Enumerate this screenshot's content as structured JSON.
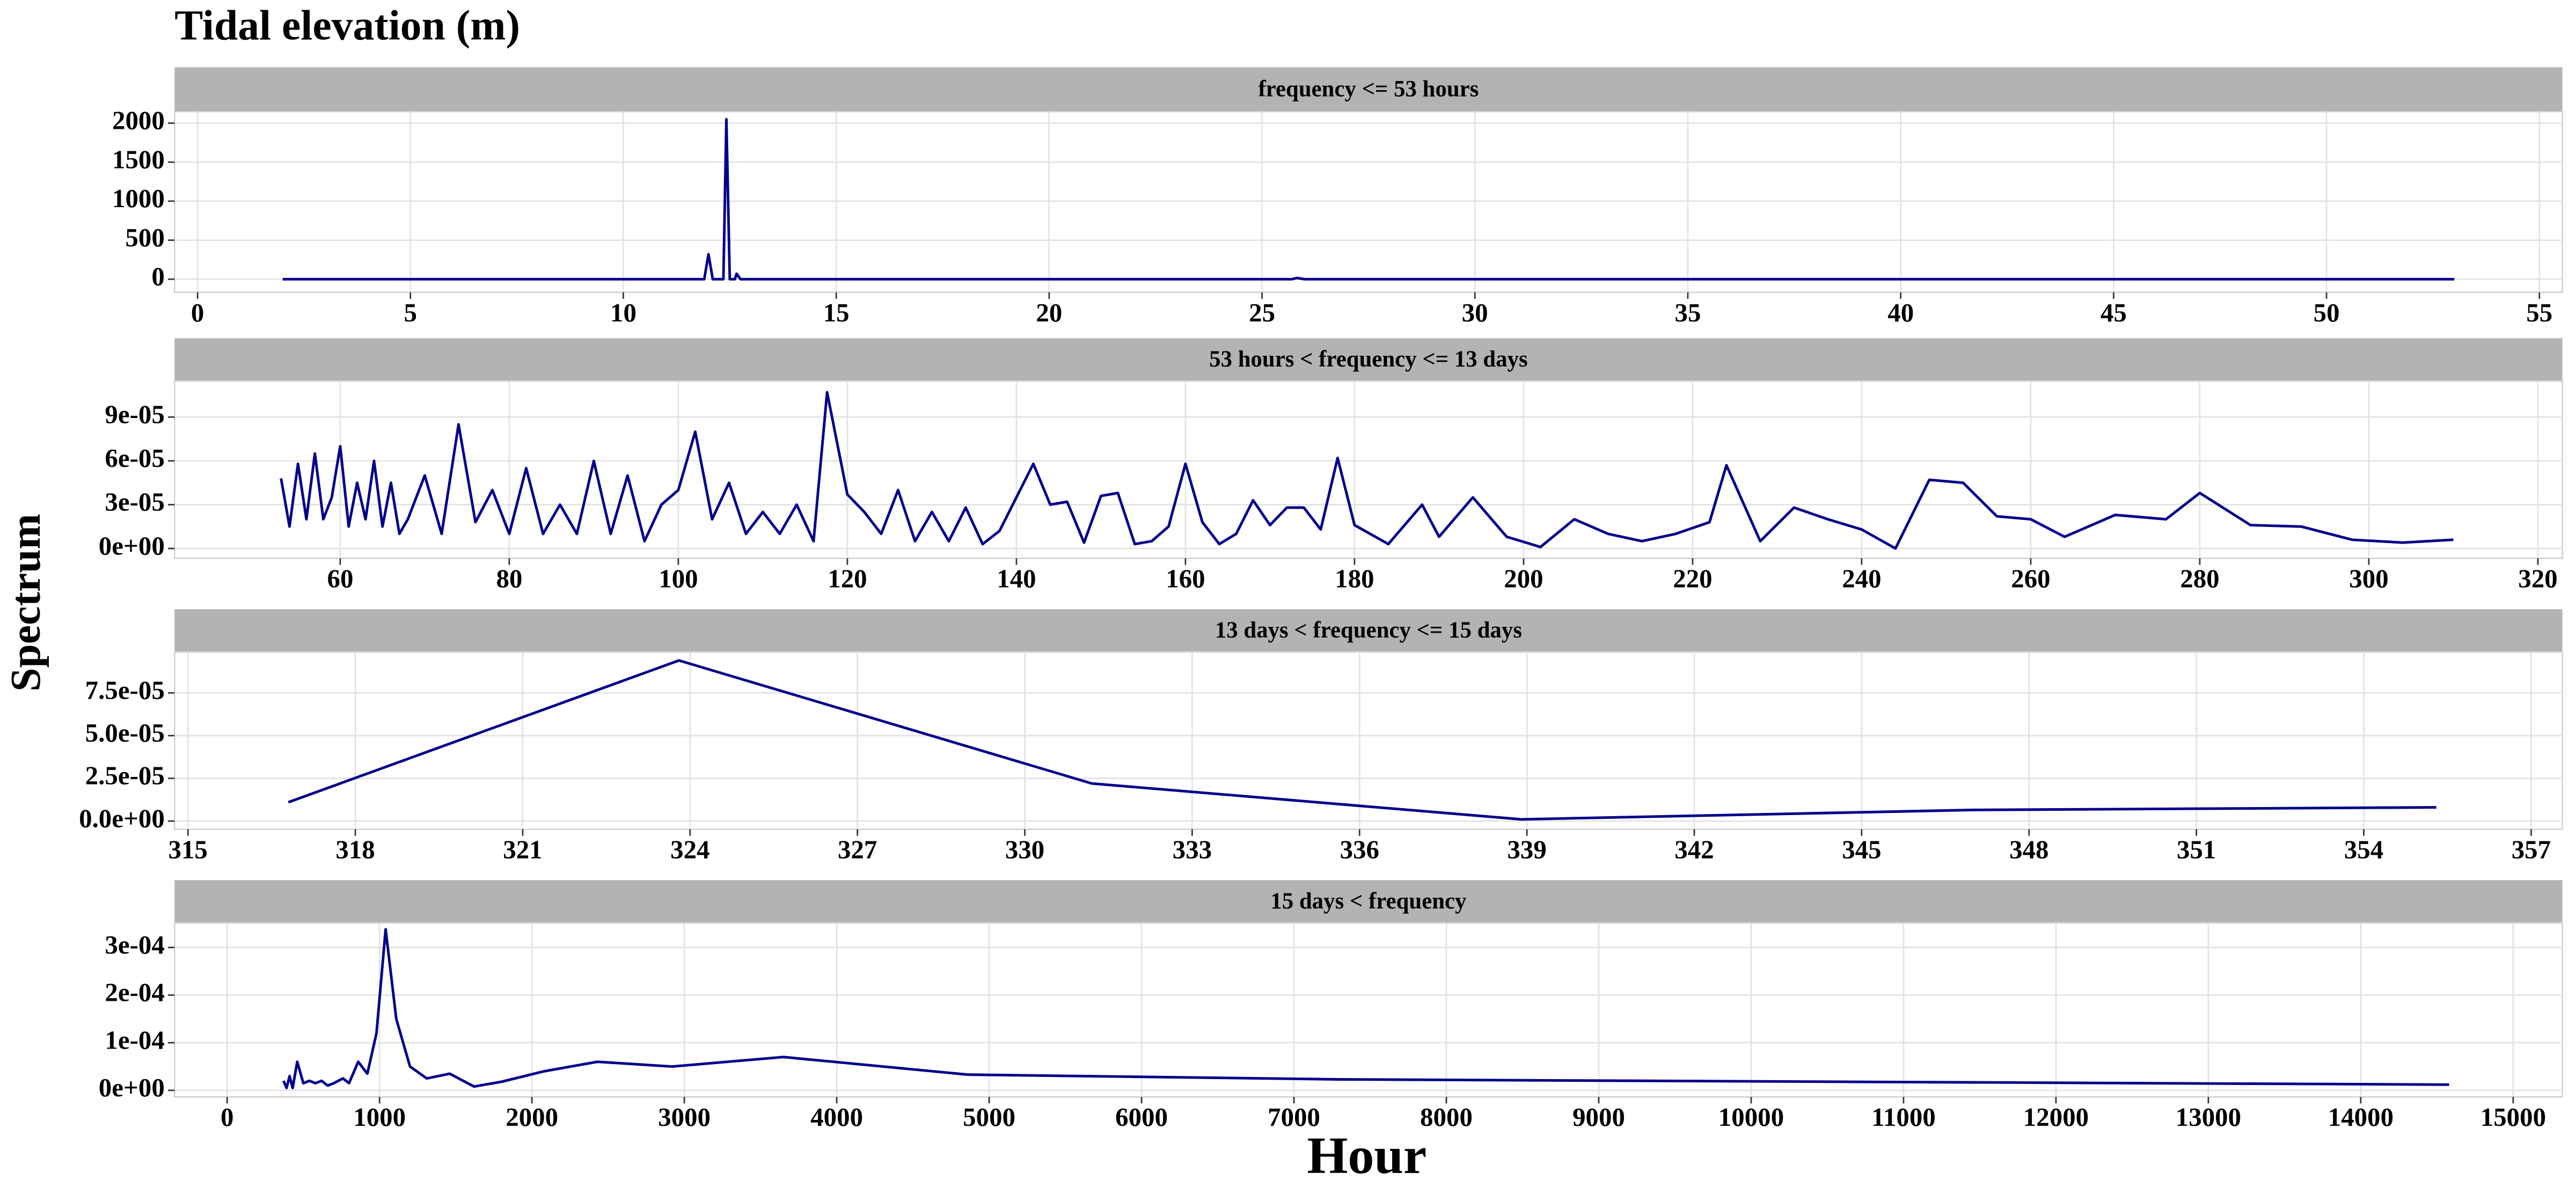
{
  "title": "Tidal elevation (m)",
  "ylabel": "Spectrum",
  "xlabel": "Hour",
  "chart_data": [
    {
      "type": "line",
      "title": "frequency <= 53 hours",
      "color": "#00008b",
      "grid": true,
      "x": [
        2,
        11.9,
        12.0,
        12.1,
        12.35,
        12.42,
        12.5,
        12.62,
        12.66,
        12.75,
        25.7,
        25.82,
        26,
        53
      ],
      "values": [
        0,
        0,
        320,
        0,
        0,
        2050,
        0,
        0,
        70,
        0,
        0,
        15,
        0,
        0
      ],
      "xlim": [
        -0.54,
        55.54
      ],
      "ylim": [
        -168,
        2147
      ],
      "xticks": [
        0,
        5,
        10,
        15,
        20,
        25,
        30,
        35,
        40,
        45,
        50,
        55
      ],
      "yticks": [
        0,
        500,
        1000,
        1500,
        2000
      ]
    },
    {
      "type": "line",
      "title": "53 hours < frequency <= 13 days",
      "color": "#00008b",
      "grid": true,
      "x": [
        53,
        54,
        55,
        56,
        57,
        58,
        59,
        60,
        61,
        62,
        63,
        64,
        65,
        66,
        67,
        68,
        70,
        72,
        74,
        76,
        78,
        80,
        82,
        84,
        86,
        88,
        90,
        92,
        94,
        96,
        98,
        100,
        102,
        104,
        106,
        108,
        110,
        112,
        114,
        116,
        117.6,
        120,
        122,
        124,
        126,
        128,
        130,
        132,
        134,
        136,
        138,
        140,
        142,
        144,
        146,
        148,
        150,
        152,
        154,
        156,
        158,
        160,
        162,
        164,
        166,
        168,
        170,
        172,
        174,
        176,
        178,
        180,
        184,
        188,
        190,
        194,
        198,
        202,
        206,
        210,
        214,
        218,
        222,
        224,
        228,
        232,
        236,
        240,
        244,
        248,
        252,
        256,
        260,
        264,
        270,
        276,
        280,
        286,
        292,
        298,
        304,
        310
      ],
      "values": [
        4.8e-05,
        1.5e-05,
        5.8e-05,
        2e-05,
        6.5e-05,
        2e-05,
        3.5e-05,
        7e-05,
        1.5e-05,
        4.5e-05,
        2e-05,
        6e-05,
        1.5e-05,
        4.5e-05,
        1e-05,
        2e-05,
        5e-05,
        1e-05,
        8.5e-05,
        1.8e-05,
        4e-05,
        1e-05,
        5.5e-05,
        1e-05,
        3e-05,
        1e-05,
        6e-05,
        1e-05,
        5e-05,
        5e-06,
        3e-05,
        4e-05,
        8e-05,
        2e-05,
        4.5e-05,
        1e-05,
        2.5e-05,
        1e-05,
        3e-05,
        5e-06,
        0.000107,
        3.7e-05,
        2.5e-05,
        1e-05,
        4e-05,
        5e-06,
        2.5e-05,
        5e-06,
        2.8e-05,
        3e-06,
        1.2e-05,
        3.5e-05,
        5.8e-05,
        3e-05,
        3.2e-05,
        4e-06,
        3.6e-05,
        3.8e-05,
        3e-06,
        5e-06,
        1.5e-05,
        5.8e-05,
        1.8e-05,
        3e-06,
        1e-05,
        3.3e-05,
        1.6e-05,
        2.8e-05,
        2.8e-05,
        1.3e-05,
        6.2e-05,
        1.6e-05,
        3e-06,
        3e-05,
        8e-06,
        3.5e-05,
        8e-06,
        1e-06,
        2e-05,
        1e-05,
        5e-06,
        1e-05,
        1.8e-05,
        5.7e-05,
        5e-06,
        2.8e-05,
        2e-05,
        1.3e-05,
        0,
        4.7e-05,
        4.5e-05,
        2.2e-05,
        2e-05,
        8e-06,
        2.3e-05,
        2e-05,
        3.8e-05,
        1.6e-05,
        1.5e-05,
        6e-06,
        4e-06,
        6e-06
      ],
      "xlim": [
        40.4,
        322.9
      ],
      "ylim": [
        -6.75e-06,
        0.00011475
      ],
      "xticks": [
        60,
        80,
        100,
        120,
        140,
        160,
        180,
        200,
        220,
        240,
        260,
        280,
        300,
        320
      ],
      "yticks": [
        {
          "value": 0,
          "label": "0e+00"
        },
        {
          "value": 3e-05,
          "label": "3e-05"
        },
        {
          "value": 6e-05,
          "label": "6e-05"
        },
        {
          "value": 9e-05,
          "label": "9e-05"
        }
      ]
    },
    {
      "type": "line",
      "title": "13 days < frequency <= 15 days",
      "color": "#00008b",
      "grid": true,
      "x": [
        316.8,
        323.8,
        331.2,
        338.9,
        347,
        355.3
      ],
      "values": [
        1.1e-05,
        9.4e-05,
        2.2e-05,
        1e-06,
        6.5e-06,
        8e-06
      ],
      "xlim": [
        314.76,
        357.56
      ],
      "ylim": [
        -4.8e-06,
        9.9e-05
      ],
      "xticks": [
        315,
        318,
        321,
        324,
        327,
        330,
        333,
        336,
        339,
        342,
        345,
        348,
        351,
        354,
        357
      ],
      "yticks": [
        {
          "value": 0,
          "label": "0.0e+00"
        },
        {
          "value": 2.5e-05,
          "label": "2.5e-05"
        },
        {
          "value": 5e-05,
          "label": "5.0e-05"
        },
        {
          "value": 7.5e-05,
          "label": "7.5e-05"
        }
      ]
    },
    {
      "type": "line",
      "title": "15 days < frequency",
      "color": "#00008b",
      "grid": true,
      "x": [
        370,
        390,
        410,
        430,
        460,
        500,
        540,
        580,
        620,
        660,
        700,
        760,
        800,
        860,
        920,
        980,
        1040,
        1110,
        1200,
        1310,
        1460,
        1620,
        1800,
        2080,
        2430,
        2920,
        3650,
        4860,
        7290,
        14580
      ],
      "values": [
        2e-05,
        5e-06,
        3e-05,
        5e-06,
        6e-05,
        1.5e-05,
        2e-05,
        1.5e-05,
        2e-05,
        1e-05,
        1.5e-05,
        2.5e-05,
        1.5e-05,
        6e-05,
        3.5e-05,
        0.00012,
        0.000338,
        0.00015,
        5e-05,
        2.5e-05,
        3.5e-05,
        8e-06,
        1.8e-05,
        4e-05,
        6e-05,
        5e-05,
        7e-05,
        3.3e-05,
        2.3e-05,
        1.2e-05
      ],
      "xlim": [
        -345,
        15323
      ],
      "ylim": [
        -1.38e-05,
        0.0003517
      ],
      "xticks": [
        0,
        1000,
        2000,
        3000,
        4000,
        5000,
        6000,
        7000,
        8000,
        9000,
        10000,
        11000,
        12000,
        13000,
        14000,
        15000
      ],
      "yticks": [
        {
          "value": 0,
          "label": "0e+00"
        },
        {
          "value": 0.0001,
          "label": "1e-04"
        },
        {
          "value": 0.0002,
          "label": "2e-04"
        },
        {
          "value": 0.0003,
          "label": "3e-04"
        }
      ]
    }
  ]
}
